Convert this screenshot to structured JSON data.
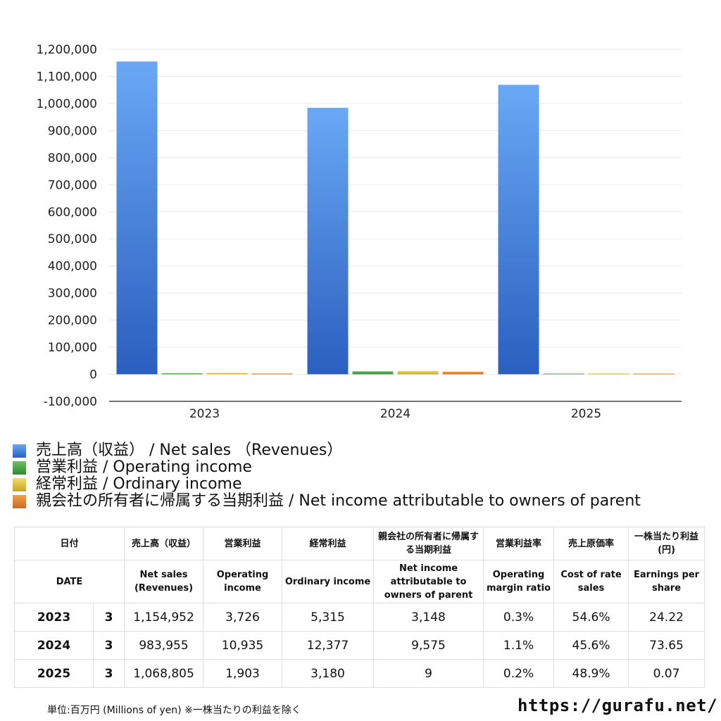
{
  "chart_data": {
    "type": "bar",
    "categories": [
      "2023",
      "2024",
      "2025"
    ],
    "series": [
      {
        "name": "売上高（収益） / Net sales （Revenues）",
        "values": [
          1154952,
          983955,
          1068805
        ],
        "color_top": "#6aa8f5",
        "color_bottom": "#2a5fbf"
      },
      {
        "name": "営業利益 / Operating income",
        "values": [
          3726,
          10935,
          1903
        ],
        "color_top": "#6fc063",
        "color_bottom": "#2e8a2e"
      },
      {
        "name": "経常利益 / Ordinary income",
        "values": [
          5315,
          12377,
          3180
        ],
        "color_top": "#f2dc6a",
        "color_bottom": "#c9a422"
      },
      {
        "name": "親会社の所有者に帰属する当期利益 / Net income attributable to owners of parent",
        "values": [
          3148,
          9575,
          9
        ],
        "color_top": "#f0a050",
        "color_bottom": "#cf6a1f"
      }
    ],
    "ylim": [
      -100000,
      1200000
    ],
    "ytick_step": 100000,
    "yticks": [
      "1,200,000",
      "1,100,000",
      "1,000,000",
      "900,000",
      "800,000",
      "700,000",
      "600,000",
      "500,000",
      "400,000",
      "300,000",
      "200,000",
      "100,000",
      "0",
      "-100,000"
    ],
    "grid": true,
    "legend_position": "bottom-left"
  },
  "table": {
    "headers_ja": [
      "日付",
      "売上高（収益）",
      "営業利益",
      "経常利益",
      "親会社の所有者に帰属する当期利益",
      "営業利益率",
      "売上原価率",
      "一株当たり利益(円)"
    ],
    "headers_en": [
      "DATE",
      "Net sales (Revenues)",
      "Operating income",
      "Ordinary income",
      "Net income attributable to owners of parent",
      "Operating margin ratio",
      "Cost of rate sales",
      "Earnings per share"
    ],
    "rows": [
      {
        "year": "2023",
        "month": "3",
        "net_sales": "1,154,952",
        "operating_income": "3,726",
        "ordinary_income": "5,315",
        "net_income": "3,148",
        "op_margin": "0.3%",
        "cost_rate": "54.6%",
        "eps": "24.22"
      },
      {
        "year": "2024",
        "month": "3",
        "net_sales": "983,955",
        "operating_income": "10,935",
        "ordinary_income": "12,377",
        "net_income": "9,575",
        "op_margin": "1.1%",
        "cost_rate": "45.6%",
        "eps": "73.65"
      },
      {
        "year": "2025",
        "month": "3",
        "net_sales": "1,068,805",
        "operating_income": "1,903",
        "ordinary_income": "3,180",
        "net_income": "9",
        "op_margin": "0.2%",
        "cost_rate": "48.9%",
        "eps": "0.07"
      }
    ]
  },
  "footnote": "単位:百万円 (Millions of yen) ※一株当たりの利益を除く",
  "site_url": "https://gurafu.net/"
}
